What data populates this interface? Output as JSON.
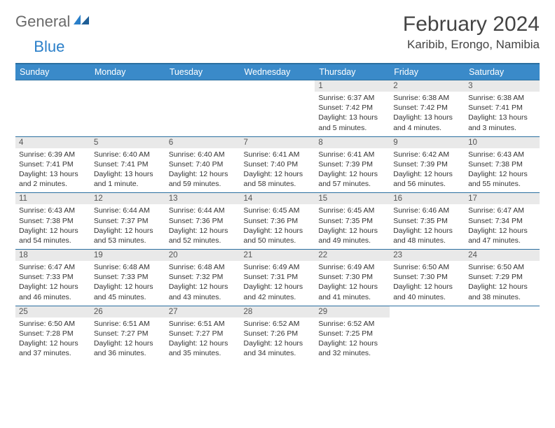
{
  "logo": {
    "text1": "General",
    "text2": "Blue"
  },
  "title": "February 2024",
  "location": "Karibib, Erongo, Namibia",
  "colors": {
    "header_bg": "#3a8ac9",
    "header_border": "#2a6fa0",
    "daynum_bg": "#e9e9e9",
    "text": "#333333",
    "logo_gray": "#6a6a6a",
    "logo_blue": "#2a7fc9"
  },
  "weekdays": [
    "Sunday",
    "Monday",
    "Tuesday",
    "Wednesday",
    "Thursday",
    "Friday",
    "Saturday"
  ],
  "weeks": [
    {
      "nums": [
        "",
        "",
        "",
        "",
        "1",
        "2",
        "3"
      ],
      "info": [
        "",
        "",
        "",
        "",
        "Sunrise: 6:37 AM\nSunset: 7:42 PM\nDaylight: 13 hours and 5 minutes.",
        "Sunrise: 6:38 AM\nSunset: 7:42 PM\nDaylight: 13 hours and 4 minutes.",
        "Sunrise: 6:38 AM\nSunset: 7:41 PM\nDaylight: 13 hours and 3 minutes."
      ]
    },
    {
      "nums": [
        "4",
        "5",
        "6",
        "7",
        "8",
        "9",
        "10"
      ],
      "info": [
        "Sunrise: 6:39 AM\nSunset: 7:41 PM\nDaylight: 13 hours and 2 minutes.",
        "Sunrise: 6:40 AM\nSunset: 7:41 PM\nDaylight: 13 hours and 1 minute.",
        "Sunrise: 6:40 AM\nSunset: 7:40 PM\nDaylight: 12 hours and 59 minutes.",
        "Sunrise: 6:41 AM\nSunset: 7:40 PM\nDaylight: 12 hours and 58 minutes.",
        "Sunrise: 6:41 AM\nSunset: 7:39 PM\nDaylight: 12 hours and 57 minutes.",
        "Sunrise: 6:42 AM\nSunset: 7:39 PM\nDaylight: 12 hours and 56 minutes.",
        "Sunrise: 6:43 AM\nSunset: 7:38 PM\nDaylight: 12 hours and 55 minutes."
      ]
    },
    {
      "nums": [
        "11",
        "12",
        "13",
        "14",
        "15",
        "16",
        "17"
      ],
      "info": [
        "Sunrise: 6:43 AM\nSunset: 7:38 PM\nDaylight: 12 hours and 54 minutes.",
        "Sunrise: 6:44 AM\nSunset: 7:37 PM\nDaylight: 12 hours and 53 minutes.",
        "Sunrise: 6:44 AM\nSunset: 7:36 PM\nDaylight: 12 hours and 52 minutes.",
        "Sunrise: 6:45 AM\nSunset: 7:36 PM\nDaylight: 12 hours and 50 minutes.",
        "Sunrise: 6:45 AM\nSunset: 7:35 PM\nDaylight: 12 hours and 49 minutes.",
        "Sunrise: 6:46 AM\nSunset: 7:35 PM\nDaylight: 12 hours and 48 minutes.",
        "Sunrise: 6:47 AM\nSunset: 7:34 PM\nDaylight: 12 hours and 47 minutes."
      ]
    },
    {
      "nums": [
        "18",
        "19",
        "20",
        "21",
        "22",
        "23",
        "24"
      ],
      "info": [
        "Sunrise: 6:47 AM\nSunset: 7:33 PM\nDaylight: 12 hours and 46 minutes.",
        "Sunrise: 6:48 AM\nSunset: 7:33 PM\nDaylight: 12 hours and 45 minutes.",
        "Sunrise: 6:48 AM\nSunset: 7:32 PM\nDaylight: 12 hours and 43 minutes.",
        "Sunrise: 6:49 AM\nSunset: 7:31 PM\nDaylight: 12 hours and 42 minutes.",
        "Sunrise: 6:49 AM\nSunset: 7:30 PM\nDaylight: 12 hours and 41 minutes.",
        "Sunrise: 6:50 AM\nSunset: 7:30 PM\nDaylight: 12 hours and 40 minutes.",
        "Sunrise: 6:50 AM\nSunset: 7:29 PM\nDaylight: 12 hours and 38 minutes."
      ]
    },
    {
      "nums": [
        "25",
        "26",
        "27",
        "28",
        "29",
        "",
        ""
      ],
      "info": [
        "Sunrise: 6:50 AM\nSunset: 7:28 PM\nDaylight: 12 hours and 37 minutes.",
        "Sunrise: 6:51 AM\nSunset: 7:27 PM\nDaylight: 12 hours and 36 minutes.",
        "Sunrise: 6:51 AM\nSunset: 7:27 PM\nDaylight: 12 hours and 35 minutes.",
        "Sunrise: 6:52 AM\nSunset: 7:26 PM\nDaylight: 12 hours and 34 minutes.",
        "Sunrise: 6:52 AM\nSunset: 7:25 PM\nDaylight: 12 hours and 32 minutes.",
        "",
        ""
      ]
    }
  ]
}
